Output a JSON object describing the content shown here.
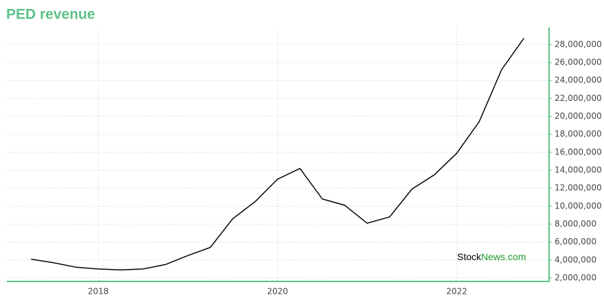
{
  "chart_data": {
    "type": "line",
    "title": "PED revenue",
    "x": [
      2017.25,
      2017.5,
      2017.75,
      2018,
      2018.25,
      2018.5,
      2018.75,
      2019,
      2019.25,
      2019.5,
      2019.75,
      2020,
      2020.25,
      2020.5,
      2020.75,
      2021,
      2021.25,
      2021.5,
      2021.75,
      2022,
      2022.25,
      2022.5,
      2022.75
    ],
    "values": [
      4100000,
      3700000,
      3200000,
      3000000,
      2900000,
      3000000,
      3500000,
      4500000,
      5400000,
      8600000,
      10500000,
      13000000,
      14200000,
      10800000,
      10100000,
      8100000,
      8800000,
      11900000,
      13500000,
      15900000,
      19400000,
      25200000,
      28700000
    ],
    "color": "#000000",
    "xlim": [
      2016.98,
      2023.03
    ],
    "xticks": [
      2018,
      2020,
      2022
    ],
    "ylim": [
      1620000,
      29900000
    ],
    "yticks": [
      {
        "value": 2000000,
        "label": "2,000,000"
      },
      {
        "value": 4000000,
        "label": "4,000,000"
      },
      {
        "value": 6000000,
        "label": "6,000,000"
      },
      {
        "value": 8000000,
        "label": "8,000,000"
      },
      {
        "value": 10000000,
        "label": "10,000,000"
      },
      {
        "value": 12000000,
        "label": "12,000,000"
      },
      {
        "value": 14000000,
        "label": "14,000,000"
      },
      {
        "value": 16000000,
        "label": "16,000,000"
      },
      {
        "value": 18000000,
        "label": "18,000,000"
      },
      {
        "value": 20000000,
        "label": "20,000,000"
      },
      {
        "value": 22000000,
        "label": "22,000,000"
      },
      {
        "value": 24000000,
        "label": "24,000,000"
      },
      {
        "value": 26000000,
        "label": "26,000,000"
      },
      {
        "value": 28000000,
        "label": "28,000,000"
      }
    ],
    "grid": true,
    "watermark": [
      "Stock",
      "News.com"
    ]
  }
}
